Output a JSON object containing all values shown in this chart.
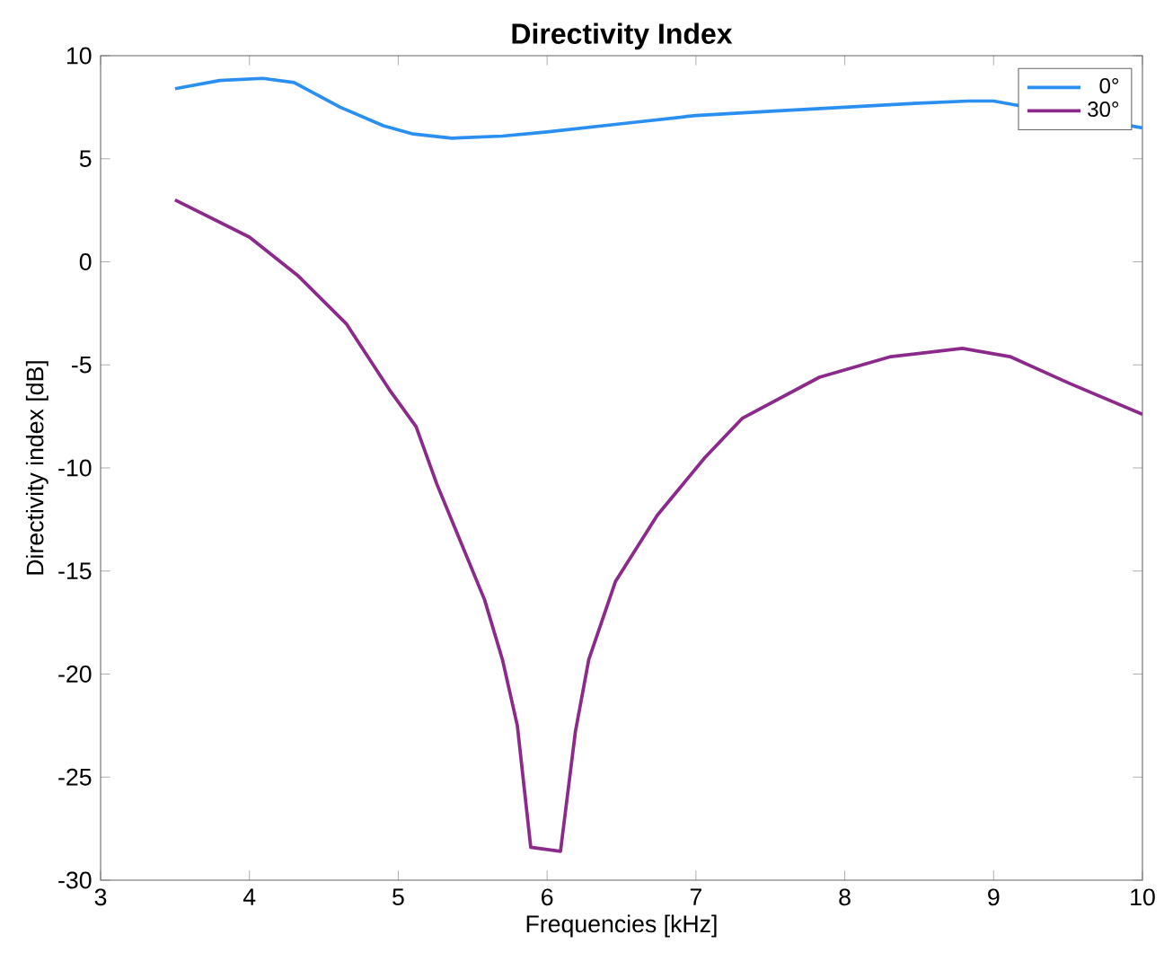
{
  "chart_data": {
    "type": "line",
    "title": "Directivity Index",
    "xlabel": "Frequencies [kHz]",
    "ylabel": "Directivity index [dB]",
    "xlim": [
      3,
      10
    ],
    "ylim": [
      -30,
      10
    ],
    "xticks": [
      3,
      4,
      5,
      6,
      7,
      8,
      9,
      10
    ],
    "yticks": [
      -30,
      -25,
      -20,
      -15,
      -10,
      -5,
      0,
      5,
      10
    ],
    "grid": false,
    "legend": "top right",
    "marker": "none",
    "line_style": "solid",
    "series": [
      {
        "name": "0°",
        "color": "#2a8ff0",
        "x": [
          3.5,
          3.8,
          4.09,
          4.3,
          4.61,
          4.9,
          5.1,
          5.36,
          5.7,
          6.0,
          6.5,
          7.0,
          7.5,
          8.0,
          8.5,
          8.83,
          9.0,
          10.0
        ],
        "values": [
          8.4,
          8.8,
          8.9,
          8.7,
          7.5,
          6.6,
          6.2,
          6.0,
          6.1,
          6.3,
          6.7,
          7.1,
          7.3,
          7.5,
          7.7,
          7.8,
          7.8,
          6.5
        ]
      },
      {
        "name": "30°",
        "color": "#8b2a8b",
        "x": [
          3.5,
          4.0,
          4.33,
          4.65,
          4.94,
          5.12,
          5.26,
          5.38,
          5.58,
          5.7,
          5.8,
          5.89,
          6.09,
          6.19,
          6.28,
          6.46,
          6.74,
          7.06,
          7.31,
          7.83,
          8.31,
          8.79,
          9.11,
          9.51,
          10.0
        ],
        "values": [
          3.0,
          1.2,
          -0.7,
          -3.0,
          -6.2,
          -8.0,
          -10.8,
          -12.9,
          -16.4,
          -19.3,
          -22.5,
          -28.4,
          -28.6,
          -22.8,
          -19.3,
          -15.5,
          -12.3,
          -9.5,
          -7.6,
          -5.6,
          -4.6,
          -4.2,
          -4.6,
          -5.9,
          -7.4
        ]
      }
    ]
  }
}
